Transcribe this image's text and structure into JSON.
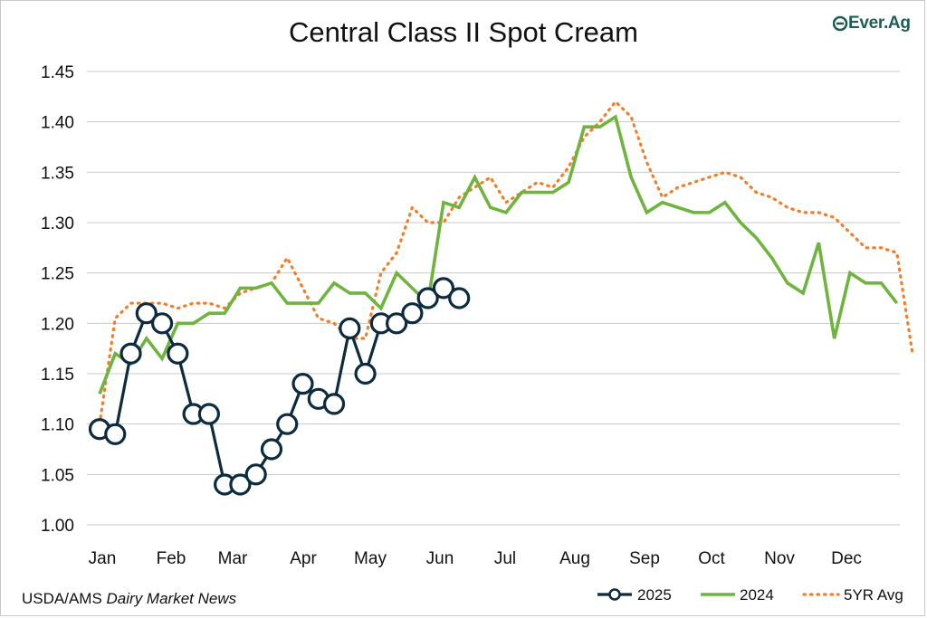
{
  "title": "Central Class II Spot Cream",
  "logo_text": "Ever.Ag",
  "source_prefix": "USDA/AMS",
  "source_italic": "Dairy Market News",
  "colors": {
    "series_2025": "#0d2b3e",
    "series_2024": "#6fb43f",
    "series_5yr": "#f07f2b",
    "grid": "#c8c8c8",
    "logo": "#1f5e58"
  },
  "chart_data": {
    "type": "line",
    "title": "Central Class II Spot Cream",
    "xlabel": "",
    "ylabel": "",
    "x_tick_labels": [
      "Jan",
      "Feb",
      "Mar",
      "Apr",
      "May",
      "Jun",
      "Jul",
      "Aug",
      "Sep",
      "Oct",
      "Nov",
      "Dec"
    ],
    "y_tick_labels": [
      "1.00",
      "1.05",
      "1.10",
      "1.15",
      "1.20",
      "1.25",
      "1.30",
      "1.35",
      "1.40",
      "1.45"
    ],
    "ylim": [
      1.0,
      1.45
    ],
    "grid": "horizontal",
    "legend_position": "bottom-right",
    "series": [
      {
        "name": "2025",
        "style": "line-with-circle-markers",
        "values": [
          1.095,
          1.09,
          1.17,
          1.21,
          1.2,
          1.17,
          1.11,
          1.11,
          1.04,
          1.04,
          1.05,
          1.075,
          1.1,
          1.14,
          1.125,
          1.12,
          1.195,
          1.15,
          1.2,
          1.2,
          1.21,
          1.225,
          1.235,
          1.225
        ]
      },
      {
        "name": "2024",
        "style": "solid",
        "values": [
          1.13,
          1.17,
          1.16,
          1.185,
          1.165,
          1.2,
          1.2,
          1.21,
          1.21,
          1.235,
          1.235,
          1.24,
          1.22,
          1.22,
          1.22,
          1.24,
          1.23,
          1.23,
          1.215,
          1.25,
          1.235,
          1.22,
          1.32,
          1.315,
          1.345,
          1.315,
          1.31,
          1.33,
          1.33,
          1.33,
          1.34,
          1.395,
          1.395,
          1.405,
          1.345,
          1.31,
          1.32,
          1.315,
          1.31,
          1.31,
          1.32,
          1.3,
          1.285,
          1.265,
          1.24,
          1.23,
          1.28,
          1.185,
          1.25,
          1.24,
          1.24,
          1.22
        ]
      },
      {
        "name": "5YR Avg",
        "style": "dotted",
        "values": [
          1.1,
          1.205,
          1.22,
          1.22,
          1.22,
          1.215,
          1.22,
          1.22,
          1.215,
          1.23,
          1.235,
          1.24,
          1.265,
          1.235,
          1.205,
          1.2,
          1.185,
          1.185,
          1.25,
          1.27,
          1.315,
          1.3,
          1.3,
          1.325,
          1.335,
          1.345,
          1.32,
          1.33,
          1.34,
          1.335,
          1.355,
          1.385,
          1.4,
          1.42,
          1.405,
          1.36,
          1.325,
          1.335,
          1.34,
          1.345,
          1.35,
          1.345,
          1.33,
          1.325,
          1.315,
          1.31,
          1.31,
          1.305,
          1.29,
          1.275,
          1.275,
          1.27,
          1.17
        ]
      }
    ]
  }
}
